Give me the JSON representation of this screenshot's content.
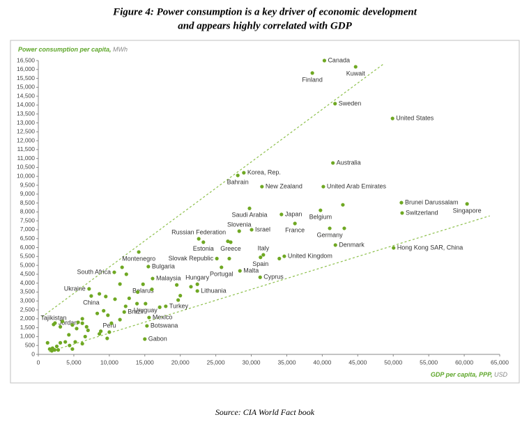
{
  "chart_data": {
    "type": "scatter",
    "title": [
      "Figure 4: Power consumption is a key driver of economic development",
      "and appears highly correlated with GDP"
    ],
    "y_label": "Power consumption per capita,",
    "y_unit": "MWh",
    "x_label": "GDP per capita, PPP,",
    "x_unit": "USD",
    "source": "Source: CIA World Fact book",
    "axis_label_color": "#5ea62a",
    "unit_color": "#888888",
    "xlim": [
      0,
      65000
    ],
    "xticks": [
      0,
      {
        "value": 5000,
        "label": "5,000"
      },
      {
        "value": 10000,
        "label": "10,000"
      },
      {
        "value": 15000,
        "label": "15,000"
      },
      {
        "value": 20000,
        "label": "20,000"
      },
      {
        "value": 25000,
        "label": "25,000"
      },
      {
        "value": 30000,
        "label": "30,000"
      },
      {
        "value": 35000,
        "label": "35,000"
      },
      {
        "value": 40000,
        "label": "40,000"
      },
      {
        "value": 45000,
        "label": "45,000"
      },
      {
        "value": 50000,
        "label": "50,000"
      },
      {
        "value": 55000,
        "label": "55,000"
      },
      {
        "value": 60000,
        "label": "60,000"
      },
      {
        "value": 65000,
        "label": "65,000"
      }
    ],
    "ylim": [
      0,
      16500
    ],
    "yticks": [
      0,
      500,
      {
        "value": 1000,
        "label": "1,000"
      },
      {
        "value": 1500,
        "label": "1,500"
      },
      {
        "value": 2000,
        "label": "2,000"
      },
      {
        "value": 2500,
        "label": "2,500"
      },
      {
        "value": 3000,
        "label": "3,000"
      },
      {
        "value": 3500,
        "label": "3,500"
      },
      {
        "value": 4000,
        "label": "4,000"
      },
      {
        "value": 4500,
        "label": "4,500"
      },
      {
        "value": 5000,
        "label": "5,000"
      },
      {
        "value": 5500,
        "label": "5,500"
      },
      {
        "value": 6000,
        "label": "6,000"
      },
      {
        "value": 6500,
        "label": "6,500"
      },
      {
        "value": 7000,
        "label": "7,000"
      },
      {
        "value": 7500,
        "label": "7,500"
      },
      {
        "value": 8000,
        "label": "8,000"
      },
      {
        "value": 8500,
        "label": "8,500"
      },
      {
        "value": 9000,
        "label": "9,000"
      },
      {
        "value": 9500,
        "label": "9,500"
      },
      {
        "value": 10000,
        "label": "10,000"
      },
      {
        "value": 10500,
        "label": "10,500"
      },
      {
        "value": 11000,
        "label": "11,000"
      },
      {
        "value": 11500,
        "label": "11,500"
      },
      {
        "value": 12000,
        "label": "12,000"
      },
      {
        "value": 12500,
        "label": "12,500"
      },
      {
        "value": 13000,
        "label": "13,000"
      },
      {
        "value": 13500,
        "label": "13,500"
      },
      {
        "value": 14000,
        "label": "14,000"
      },
      {
        "value": 14500,
        "label": "14,500"
      },
      {
        "value": 15000,
        "label": "15,000"
      },
      {
        "value": 15500,
        "label": "15,500"
      },
      {
        "value": 16000,
        "label": "16,000"
      },
      {
        "value": 16500,
        "label": "16,500"
      }
    ],
    "trend_lines": [
      {
        "x": [
          500,
          48600
        ],
        "y": [
          2100,
          16300
        ]
      },
      {
        "x": [
          1500,
          63600
        ],
        "y": [
          150,
          7780
        ]
      }
    ],
    "trend_color": "#8cbf4a",
    "series": [
      {
        "color": "#6fa823",
        "labels": [
          "Canada",
          "Kuwait",
          "Finland",
          "Sweden",
          "United States",
          "Australia",
          "Korea, Rep.",
          "Bahrain",
          "New Zealand",
          "United Arab Emirates",
          "Saudi Arabia",
          "Japan",
          "Belgium",
          "Brunei Darussalam",
          "Switzerland",
          "Singapore",
          "Slovenia",
          "Israel",
          "France",
          "Germany",
          "Russian Federation",
          "Estonia",
          "Greece",
          "Denmark",
          "Hong Kong SAR, China",
          "Italy",
          "Spain",
          "United Kingdom",
          "Portugal",
          "Malta",
          "Cyprus",
          "Slovak Republic",
          "Montenegro",
          "Bulgaria",
          "South Africa",
          "Malaysia",
          "Hungary",
          "Belarus",
          "Lithuania",
          "Ukraine",
          "China",
          "Uruguay",
          "Turkey",
          "Brazil",
          "Mexico",
          "Botswana",
          "Jordan",
          "Tajikistan",
          "Peru",
          "Gabon",
          null,
          null,
          null,
          null,
          null,
          null,
          null,
          null,
          null,
          null,
          null,
          null,
          null,
          null,
          null,
          null,
          null,
          null,
          null,
          null,
          null,
          null,
          null,
          null,
          null,
          null,
          null,
          null,
          null,
          null,
          null,
          null,
          null,
          null,
          null,
          null,
          null,
          null,
          null,
          null,
          null,
          null,
          null,
          null,
          null,
          null,
          null,
          null,
          null,
          null,
          null,
          null,
          null
        ],
        "x": [
          40300,
          44700,
          38600,
          41800,
          49900,
          41500,
          28950,
          28100,
          31500,
          40150,
          29750,
          34250,
          39750,
          51150,
          51250,
          60400,
          28300,
          30050,
          36150,
          41050,
          22600,
          23250,
          27100,
          41850,
          50050,
          31700,
          31300,
          34650,
          25800,
          28400,
          31250,
          25150,
          14150,
          15500,
          10700,
          16100,
          22400,
          14750,
          22400,
          7150,
          7450,
          15100,
          17950,
          12100,
          15600,
          15300,
          2350,
          2150,
          10000,
          15000,
          42900,
          43100,
          26700,
          33950,
          26900,
          12400,
          11500,
          9500,
          8600,
          10800,
          12800,
          14000,
          16000,
          19500,
          20000,
          21500,
          19700,
          17100,
          13900,
          12300,
          9200,
          9800,
          8300,
          10300,
          11500,
          6200,
          5600,
          6200,
          4800,
          3100,
          3400,
          6800,
          7000,
          5400,
          4300,
          3800,
          4400,
          3100,
          5200,
          6200,
          4800,
          2600,
          1600,
          1300,
          1900,
          2300,
          2800,
          6600,
          8800,
          9700,
          8600,
          2000,
          11800
        ],
        "y": [
          16500,
          16150,
          15800,
          14080,
          13250,
          10750,
          10200,
          10050,
          9420,
          9420,
          8200,
          7860,
          8090,
          8520,
          7940,
          8450,
          6920,
          7000,
          7350,
          7080,
          6490,
          6300,
          6300,
          6140,
          5980,
          5590,
          5450,
          5510,
          4890,
          4690,
          4330,
          5380,
          5750,
          4930,
          4610,
          4260,
          3940,
          3940,
          3560,
          3680,
          3280,
          2850,
          2700,
          2380,
          2070,
          1600,
          1760,
          1680,
          1250,
          860,
          8400,
          7080,
          6350,
          5380,
          5380,
          4500,
          3950,
          3250,
          3400,
          3100,
          3150,
          3500,
          3650,
          3900,
          3300,
          3800,
          3050,
          2650,
          2850,
          2700,
          2450,
          2200,
          2300,
          1750,
          1950,
          2000,
          1800,
          1750,
          1650,
          1550,
          1850,
          1550,
          1350,
          1450,
          1100,
          700,
          500,
          650,
          700,
          600,
          300,
          450,
          300,
          650,
          200,
          250,
          250,
          1000,
          1300,
          900,
          1150,
          350,
          4890
        ]
      }
    ]
  }
}
